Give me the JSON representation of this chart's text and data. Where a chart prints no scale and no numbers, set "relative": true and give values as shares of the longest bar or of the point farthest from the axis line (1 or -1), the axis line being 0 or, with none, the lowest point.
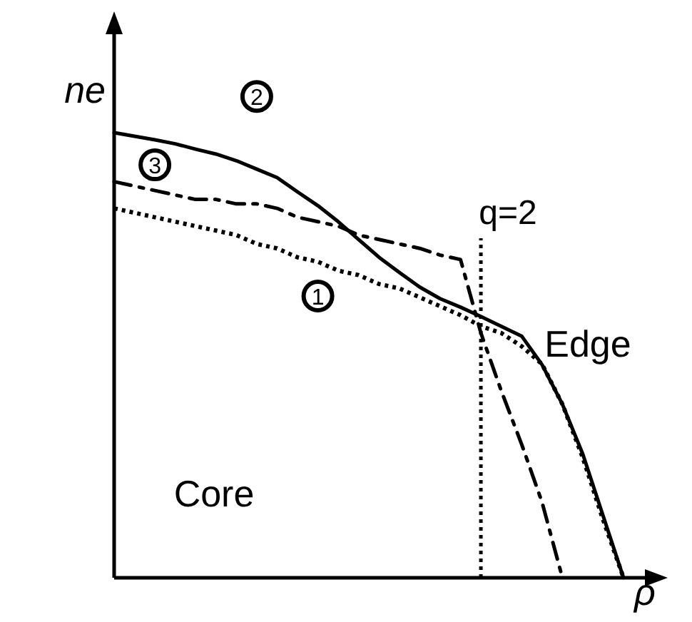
{
  "chart_data": {
    "type": "line",
    "relative": true,
    "xlabel": "ρ",
    "ylabel": "ne",
    "categories": [
      null,
      null,
      null,
      null,
      null,
      null,
      null,
      null,
      null,
      null,
      null,
      null,
      null,
      null,
      null,
      null,
      null,
      null,
      null,
      null,
      null,
      null,
      null,
      null,
      null,
      null
    ],
    "series": [
      {
        "name": "1",
        "color": "#000000",
        "line_style": "dotted",
        "values": [
          0.83,
          0.82,
          0.81,
          0.8,
          0.79,
          0.78,
          0.77,
          0.75,
          0.74,
          0.72,
          0.71,
          0.69,
          0.68,
          0.66,
          0.65,
          0.63,
          0.61,
          0.59,
          0.565,
          0.55,
          0.52,
          0.48,
          0.39,
          0.27,
          0.13,
          0
        ]
      },
      {
        "name": "2",
        "color": "#000000",
        "line_style": "solid",
        "values": [
          1,
          0.992,
          0.984,
          0.975,
          0.963,
          0.952,
          0.937,
          0.918,
          0.899,
          0.867,
          0.836,
          0.8,
          0.76,
          0.72,
          0.686,
          0.653,
          0.627,
          0.608,
          0.587,
          0.565,
          0.543,
          0.479,
          0.39,
          0.278,
          0.139,
          0
        ]
      },
      {
        "name": "3",
        "color": "#000000",
        "line_style": "dashed",
        "values": [
          0.89,
          0.88,
          0.87,
          0.86,
          0.85,
          0.85,
          0.84,
          0.84,
          0.83,
          0.81,
          0.8,
          0.79,
          0.77,
          0.76,
          0.75,
          0.74,
          0.725,
          0.715,
          0.55,
          0.42,
          0.3,
          0.17,
          0,
          null,
          null,
          null
        ]
      }
    ],
    "annotations": [
      "q=2",
      "Core",
      "Edge"
    ]
  }
}
